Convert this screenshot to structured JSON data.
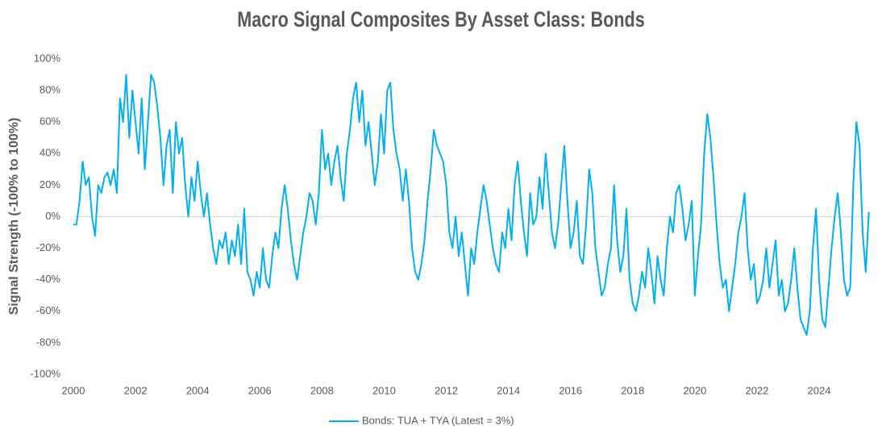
{
  "chart_data": {
    "type": "line",
    "title": "Macro Signal Composites By Asset Class: Bonds",
    "y_label": "Signal Strength (-100% to 100%)",
    "xlim": [
      2000,
      2025.66
    ],
    "xticks": [
      2000,
      2002,
      2004,
      2006,
      2008,
      2010,
      2012,
      2014,
      2016,
      2018,
      2020,
      2022,
      2024
    ],
    "ylim": [
      -100,
      100
    ],
    "yticks": [
      {
        "value": -100,
        "label": "-100%"
      },
      {
        "value": -80,
        "label": "-80%"
      },
      {
        "value": -60,
        "label": "-60%"
      },
      {
        "value": -40,
        "label": "-40%"
      },
      {
        "value": -20,
        "label": "-20%"
      },
      {
        "value": 0,
        "label": "0%"
      },
      {
        "value": 20,
        "label": "20%"
      },
      {
        "value": 40,
        "label": "40%"
      },
      {
        "value": 60,
        "label": "60%"
      },
      {
        "value": 80,
        "label": "80%"
      },
      {
        "value": 100,
        "label": "100%"
      }
    ],
    "zero_line": true,
    "legend": "bottom",
    "x": [
      2000.0,
      2000.1,
      2000.2,
      2000.3,
      2000.4,
      2000.5,
      2000.6,
      2000.7,
      2000.8,
      2000.9,
      2001.0,
      2001.1,
      2001.2,
      2001.3,
      2001.4,
      2001.5,
      2001.6,
      2001.7,
      2001.8,
      2001.9,
      2002.0,
      2002.1,
      2002.2,
      2002.3,
      2002.4,
      2002.5,
      2002.6,
      2002.7,
      2002.8,
      2002.9,
      2003.0,
      2003.1,
      2003.2,
      2003.3,
      2003.4,
      2003.5,
      2003.6,
      2003.7,
      2003.8,
      2003.9,
      2004.0,
      2004.1,
      2004.2,
      2004.3,
      2004.4,
      2004.5,
      2004.6,
      2004.7,
      2004.8,
      2004.9,
      2005.0,
      2005.1,
      2005.2,
      2005.3,
      2005.4,
      2005.5,
      2005.6,
      2005.7,
      2005.8,
      2005.9,
      2006.0,
      2006.1,
      2006.2,
      2006.3,
      2006.4,
      2006.5,
      2006.6,
      2006.7,
      2006.8,
      2006.9,
      2007.0,
      2007.1,
      2007.2,
      2007.3,
      2007.4,
      2007.5,
      2007.6,
      2007.7,
      2007.8,
      2007.9,
      2008.0,
      2008.1,
      2008.2,
      2008.3,
      2008.4,
      2008.5,
      2008.6,
      2008.7,
      2008.8,
      2008.9,
      2009.0,
      2009.1,
      2009.2,
      2009.3,
      2009.4,
      2009.5,
      2009.6,
      2009.7,
      2009.8,
      2009.9,
      2010.0,
      2010.1,
      2010.2,
      2010.3,
      2010.4,
      2010.5,
      2010.6,
      2010.7,
      2010.8,
      2010.9,
      2011.0,
      2011.1,
      2011.2,
      2011.3,
      2011.4,
      2011.5,
      2011.6,
      2011.7,
      2011.8,
      2011.9,
      2012.0,
      2012.1,
      2012.2,
      2012.3,
      2012.4,
      2012.5,
      2012.6,
      2012.7,
      2012.8,
      2012.9,
      2013.0,
      2013.1,
      2013.2,
      2013.3,
      2013.4,
      2013.5,
      2013.6,
      2013.7,
      2013.8,
      2013.9,
      2014.0,
      2014.1,
      2014.2,
      2014.3,
      2014.4,
      2014.5,
      2014.6,
      2014.7,
      2014.8,
      2014.9,
      2015.0,
      2015.1,
      2015.2,
      2015.3,
      2015.4,
      2015.5,
      2015.6,
      2015.7,
      2015.8,
      2015.9,
      2016.0,
      2016.1,
      2016.2,
      2016.3,
      2016.4,
      2016.5,
      2016.6,
      2016.7,
      2016.8,
      2016.9,
      2017.0,
      2017.1,
      2017.2,
      2017.3,
      2017.4,
      2017.5,
      2017.6,
      2017.7,
      2017.8,
      2017.9,
      2018.0,
      2018.1,
      2018.2,
      2018.3,
      2018.4,
      2018.5,
      2018.6,
      2018.7,
      2018.8,
      2018.9,
      2019.0,
      2019.1,
      2019.2,
      2019.3,
      2019.4,
      2019.5,
      2019.6,
      2019.7,
      2019.8,
      2019.9,
      2020.0,
      2020.1,
      2020.2,
      2020.3,
      2020.4,
      2020.5,
      2020.6,
      2020.7,
      2020.8,
      2020.9,
      2021.0,
      2021.1,
      2021.2,
      2021.3,
      2021.4,
      2021.5,
      2021.6,
      2021.7,
      2021.8,
      2021.9,
      2022.0,
      2022.1,
      2022.2,
      2022.3,
      2022.4,
      2022.5,
      2022.6,
      2022.7,
      2022.8,
      2022.9,
      2023.0,
      2023.1,
      2023.2,
      2023.3,
      2023.4,
      2023.5,
      2023.6,
      2023.7,
      2023.8,
      2023.9,
      2024.0,
      2024.1,
      2024.2,
      2024.3,
      2024.4,
      2024.5,
      2024.6,
      2024.7,
      2024.8,
      2024.9,
      2025.0,
      2025.1,
      2025.2,
      2025.3,
      2025.4,
      2025.5,
      2025.6
    ],
    "series": [
      {
        "name": "Bonds: TUA + TYA (Latest = 3%)",
        "color": "#00b0f0",
        "values": [
          -5,
          -5,
          10,
          35,
          20,
          25,
          0,
          -12,
          20,
          15,
          25,
          28,
          20,
          30,
          15,
          75,
          60,
          90,
          50,
          80,
          60,
          40,
          75,
          30,
          60,
          90,
          85,
          70,
          50,
          20,
          45,
          55,
          15,
          60,
          40,
          50,
          20,
          0,
          25,
          10,
          35,
          15,
          0,
          15,
          -5,
          -20,
          -30,
          -15,
          -20,
          -10,
          -30,
          -15,
          -25,
          -5,
          -30,
          5,
          -35,
          -40,
          -50,
          -35,
          -45,
          -20,
          -40,
          -45,
          -25,
          -10,
          -20,
          5,
          20,
          5,
          -15,
          -30,
          -40,
          -25,
          -10,
          0,
          15,
          10,
          -5,
          15,
          55,
          30,
          40,
          20,
          35,
          45,
          25,
          10,
          40,
          55,
          75,
          85,
          60,
          80,
          45,
          60,
          40,
          20,
          35,
          65,
          40,
          80,
          85,
          55,
          40,
          30,
          10,
          30,
          10,
          -20,
          -35,
          -40,
          -30,
          -15,
          10,
          30,
          55,
          45,
          40,
          35,
          20,
          -10,
          -20,
          0,
          -25,
          -10,
          -30,
          -50,
          -20,
          -30,
          -10,
          5,
          20,
          10,
          -5,
          -20,
          -30,
          -35,
          -10,
          -20,
          5,
          -15,
          20,
          35,
          10,
          -10,
          -25,
          15,
          -5,
          0,
          25,
          5,
          40,
          15,
          -10,
          -20,
          -5,
          20,
          45,
          10,
          -20,
          -10,
          10,
          -25,
          -30,
          -5,
          30,
          15,
          -20,
          -35,
          -50,
          -45,
          -30,
          -20,
          20,
          -15,
          -35,
          -25,
          5,
          -40,
          -55,
          -60,
          -50,
          -35,
          -45,
          -20,
          -35,
          -55,
          -25,
          -40,
          -50,
          -20,
          0,
          -10,
          15,
          20,
          5,
          -15,
          -5,
          10,
          -50,
          -25,
          -5,
          40,
          65,
          50,
          25,
          -5,
          -30,
          -45,
          -40,
          -60,
          -45,
          -30,
          -10,
          0,
          15,
          -20,
          -40,
          -30,
          -55,
          -50,
          -40,
          -20,
          -45,
          -30,
          -15,
          -50,
          -40,
          -60,
          -55,
          -40,
          -20,
          -45,
          -65,
          -70,
          -75,
          -60,
          -20,
          5,
          -40,
          -65,
          -70,
          -45,
          -20,
          0,
          15,
          -10,
          -40,
          -50,
          -45,
          20,
          60,
          45,
          -10,
          -35,
          3
        ]
      }
    ]
  }
}
